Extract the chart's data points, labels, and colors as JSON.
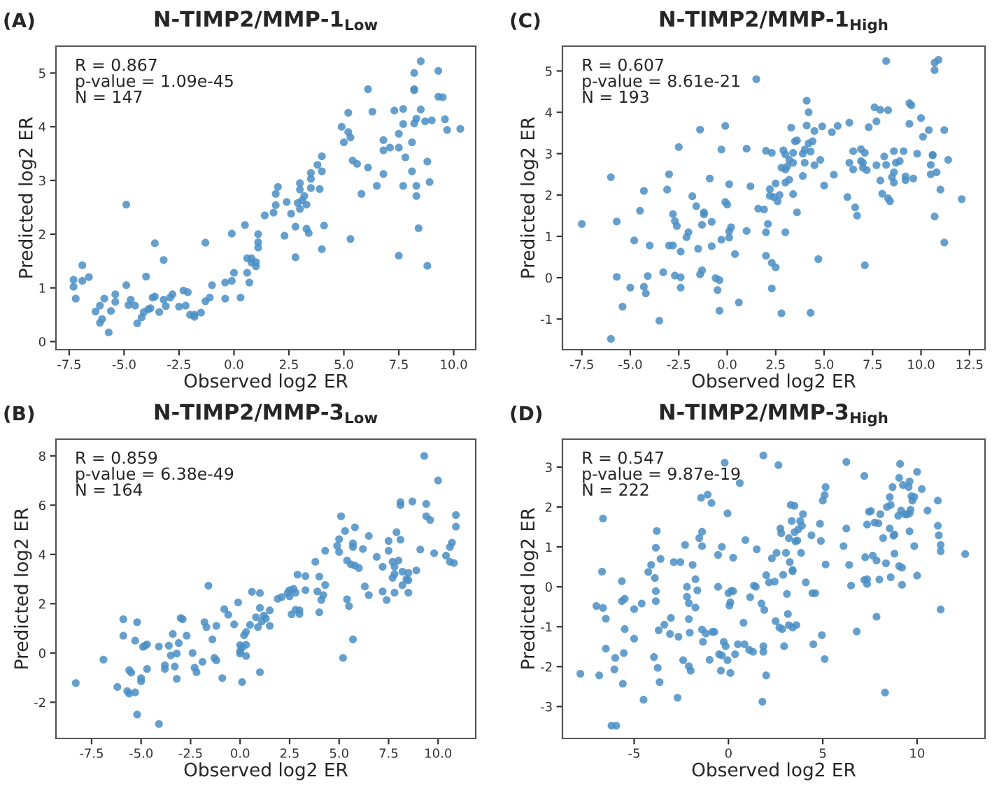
{
  "chart_data": [
    {
      "type": "scatter",
      "title": "N-TIMP2/MMP-1$_{Low}$",
      "xlabel": "Observed log2 ER",
      "ylabel": "Predicted log2 ER",
      "annotations": [
        "(A)",
        "R = 0.867\np-value = 1.09e-45\nN = 147"
      ],
      "xlim": [
        -8.1,
        11.0
      ],
      "ylim": [
        -0.15,
        5.5
      ],
      "xticks": [
        -7.5,
        {
          "value": -5,
          "label": "-5.0"
        },
        -2.5,
        {
          "value": 0,
          "label": "0.0"
        },
        2.5,
        {
          "value": 5,
          "label": "5.0"
        },
        7.5,
        {
          "value": 10,
          "label": "10.0"
        }
      ],
      "yticks": [
        0,
        1,
        2,
        3,
        4,
        5
      ],
      "grid": false,
      "marker": "circle",
      "series": [
        {
          "color": "#4a8ec4",
          "x": [
            -7.3,
            -7.3,
            -7.2,
            -6.9,
            -6.9,
            -6.6,
            -6.3,
            -6.1,
            -6.1,
            -6.0,
            -5.9,
            -5.7,
            -5.6,
            -5.4,
            -5.4,
            -4.9,
            -4.9,
            -4.8,
            -4.7,
            -4.5,
            -4.4,
            -4.2,
            -4.1,
            -4.0,
            -3.9,
            -3.8,
            -3.7,
            -3.6,
            -3.6,
            -3.4,
            -3.2,
            -3.2,
            -3.1,
            -2.9,
            -2.8,
            -2.5,
            -2.3,
            -2.2,
            -2.1,
            -2.0,
            -1.8,
            -1.8,
            -1.5,
            -1.3,
            -1.3,
            -1.1,
            -1.0,
            -0.4,
            -0.4,
            -0.1,
            -0.1,
            0.0,
            0.3,
            0.5,
            0.6,
            0.6,
            0.7,
            0.8,
            0.8,
            1.0,
            1.0,
            1.1,
            1.1,
            1.1,
            1.4,
            1.8,
            1.9,
            2.0,
            1.9,
            2.3,
            2.4,
            2.6,
            2.8,
            2.8,
            2.9,
            3.0,
            3.0,
            3.0,
            3.1,
            3.2,
            3.3,
            3.4,
            3.3,
            3.5,
            3.5,
            3.5,
            3.8,
            3.9,
            4.0,
            4.0,
            4.0,
            4.1,
            4.9,
            5.0,
            5.2,
            5.2,
            5.3,
            5.3,
            5.4,
            5.6,
            5.8,
            6.1,
            6.1,
            6.3,
            6.5,
            6.8,
            6.8,
            6.8,
            7.1,
            7.3,
            7.5,
            7.5,
            7.5,
            7.7,
            7.7,
            7.7,
            7.8,
            8.1,
            8.1,
            8.2,
            8.2,
            8.2,
            8.2,
            8.3,
            8.3,
            8.3,
            8.4,
            8.5,
            8.5,
            8.7,
            8.8,
            8.8,
            8.9,
            9.0,
            9.3,
            9.3,
            9.5,
            9.6,
            9.7,
            10.3
          ],
          "values": [
            1.15,
            1.02,
            0.8,
            1.42,
            1.13,
            1.2,
            0.56,
            0.67,
            0.35,
            0.42,
            0.8,
            0.17,
            0.57,
            0.88,
            0.74,
            1.05,
            2.55,
            0.68,
            0.78,
            0.67,
            0.34,
            0.45,
            0.55,
            1.21,
            0.6,
            0.62,
            0.82,
            1.83,
            0.84,
            0.55,
            1.52,
            0.78,
            0.66,
            0.82,
            0.88,
            0.65,
            0.95,
            0.67,
            0.92,
            0.5,
            0.46,
            0.5,
            0.54,
            0.75,
            1.84,
            0.82,
            1.05,
            1.1,
            0.8,
            2.01,
            1.13,
            1.28,
            0.82,
            2.17,
            1.28,
            1.55,
            1.1,
            1.55,
            1.47,
            1.48,
            1.4,
            2.0,
            1.85,
            1.75,
            2.35,
            2.4,
            2.75,
            2.88,
            2.54,
            1.97,
            2.6,
            2.38,
            2.14,
            1.57,
            2.58,
            2.95,
            2.83,
            2.47,
            2.63,
            2.71,
            2.1,
            2.02,
            2.55,
            3.14,
            3.03,
            2.86,
            3.29,
            2.84,
            3.45,
            3.17,
            1.72,
            2.16,
            4.0,
            3.71,
            4.26,
            3.9,
            3.8,
            1.91,
            3.37,
            3.31,
            2.75,
            4.7,
            3.24,
            4.28,
            2.9,
            3.12,
            3.75,
            3.56,
            3.61,
            4.3,
            3.61,
            3.87,
            1.6,
            4.05,
            4.33,
            2.9,
            3.43,
            3.71,
            3.17,
            5.0,
            4.7,
            4.68,
            4.06,
            4.15,
            2.9,
            2.71,
            2.11,
            5.22,
            4.32,
            4.1,
            1.41,
            3.35,
            2.97,
            4.12,
            5.04,
            4.56,
            4.55,
            4.14,
            3.94,
            3.96
          ]
        }
      ]
    },
    {
      "type": "scatter",
      "title": "N-TIMP2/MMP-1$_{High}$",
      "xlabel": "Observed log2 ER",
      "ylabel": "Predicted log2 ER",
      "annotations": [
        "(C)",
        "R = 0.607\np-value = 8.61e-21\nN = 193"
      ],
      "xlim": [
        -8.5,
        13.3
      ],
      "ylim": [
        -1.74,
        5.6
      ],
      "xticks": [
        -7.5,
        {
          "value": -5,
          "label": "-5.0"
        },
        -2.5,
        {
          "value": 0,
          "label": "0.0"
        },
        2.5,
        {
          "value": 5,
          "label": "5.0"
        },
        7.5,
        {
          "value": 10,
          "label": "10.0"
        },
        12.5
      ],
      "yticks": [
        -1,
        0,
        1,
        2,
        3,
        4,
        5
      ],
      "grid": false,
      "marker": "circle",
      "series": [
        {
          "color": "#4a8ec4",
          "x": [
            -7.5,
            -6.0,
            -6.0,
            -5.7,
            -5.7,
            -5.4,
            -5.0,
            -4.8,
            -4.5,
            -4.3,
            -4.3,
            -4.2,
            -4.1,
            -4.0,
            -3.5,
            -3.3,
            -3.1,
            -3.0,
            -3.0,
            -2.8,
            -2.8,
            -2.7,
            -2.6,
            -2.7,
            -2.5,
            -2.4,
            -2.4,
            -2.4,
            -2.1,
            -2.0,
            -1.8,
            -1.6,
            -1.5,
            -1.4,
            -1.4,
            -1.3,
            -1.3,
            -1.2,
            -1.2,
            -0.9,
            -0.8,
            -0.8,
            -0.6,
            -0.5,
            -0.4,
            -0.4,
            -0.3,
            -0.3,
            -0.1,
            -0.1,
            0.0,
            0.1,
            0.1,
            0.1,
            0.2,
            0.4,
            0.6,
            1.0,
            1.0,
            1.2,
            1.5,
            1.6,
            1.9,
            2.0,
            2.0,
            2.0,
            2.1,
            2.2,
            2.2,
            2.3,
            2.3,
            2.3,
            2.4,
            2.5,
            2.5,
            2.6,
            2.7,
            2.8,
            2.9,
            2.8,
            3.0,
            3.0,
            3.0,
            3.0,
            3.1,
            3.2,
            3.2,
            3.3,
            3.4,
            3.4,
            3.5,
            3.6,
            3.4,
            3.6,
            3.9,
            3.9,
            4.0,
            4.0,
            4.1,
            4.1,
            4.2,
            4.2,
            4.3,
            4.3,
            4.4,
            4.5,
            4.5,
            4.7,
            4.8,
            4.9,
            5.0,
            5.4,
            5.5,
            5.7,
            6.2,
            6.3,
            6.3,
            6.5,
            6.5,
            6.6,
            6.7,
            6.9,
            6.9,
            7.0,
            7.0,
            7.1,
            7.1,
            7.2,
            7.3,
            7.6,
            7.7,
            7.7,
            7.9,
            7.9,
            8.0,
            8.1,
            8.2,
            8.3,
            8.2,
            8.3,
            8.4,
            8.5,
            8.6,
            8.6,
            8.6,
            8.7,
            8.9,
            9.1,
            9.2,
            9.2,
            9.4,
            9.4,
            9.5,
            9.6,
            9.8,
            10.0,
            10.1,
            10.4,
            10.5,
            10.5,
            10.6,
            10.6,
            10.7,
            10.7,
            10.7,
            10.8,
            10.9,
            11.0,
            11.2,
            11.2,
            11.4,
            12.1
          ],
          "values": [
            1.3,
            2.43,
            -1.48,
            1.36,
            0.02,
            -0.7,
            -0.24,
            0.9,
            1.62,
            2.1,
            -0.22,
            -0.38,
            0.04,
            0.78,
            -1.04,
            0.13,
            2.13,
            2.5,
            0.78,
            0.78,
            1.54,
            1.37,
            1.25,
            0.05,
            3.16,
            0.63,
            0.01,
            -0.24,
            0.98,
            1.1,
            1.97,
            1.73,
            0.7,
            3.58,
            0.08,
            0.18,
            1.28,
            1.58,
            1.53,
            2.4,
            0.76,
            1.35,
            -0.01,
            -0.3,
            -0.06,
            -0.8,
            3.1,
            0.92,
            3.67,
            1.83,
            1.77,
            2.26,
            1.12,
            0.97,
            1.22,
            0.57,
            -0.6,
            3.12,
            1.13,
            2.21,
            4.8,
            1.67,
            1.65,
            3.07,
            1.1,
            0.53,
            1.3,
            2.14,
            1.98,
            3.02,
            0.36,
            -0.26,
            1.95,
            2.28,
            0.25,
            1.85,
            2.0,
            2.66,
            3.08,
            -0.86,
            2.62,
            2.98,
            2.3,
            1.1,
            2.69,
            2.85,
            2.37,
            3.63,
            3.02,
            2.78,
            3.3,
            3.32,
            2.02,
            1.58,
            2.46,
            3.0,
            3.1,
            2.78,
            3.68,
            4.28,
            3.25,
            4.0,
            3.05,
            -0.85,
            3.3,
            3.55,
            2.72,
            0.45,
            2.85,
            3.66,
            2.23,
            3.52,
            2.49,
            3.67,
            1.95,
            2.78,
            3.75,
            3.06,
            2.62,
            1.7,
            1.5,
            2.82,
            3.11,
            2.78,
            2.66,
            3.02,
            0.3,
            2.6,
            3.64,
            4.12,
            3.78,
            2.72,
            2.35,
            4.06,
            2.03,
            2.93,
            2.73,
            4.05,
            5.24,
            1.92,
            1.85,
            2.43,
            3.06,
            2.55,
            2.3,
            2.78,
            2.82,
            3.06,
            2.45,
            2.36,
            4.22,
            3.72,
            4.17,
            2.4,
            3.0,
            3.86,
            3.41,
            3.57,
            2.5,
            2.73,
            2.96,
            2.97,
            5.02,
            1.48,
            5.2,
            2.55,
            5.27,
            2.13,
            3.57,
            0.85,
            2.85,
            1.9
          ]
        }
      ]
    },
    {
      "type": "scatter",
      "title": "N-TIMP2/MMP-3$_{Low}$",
      "xlabel": "Observed log2 ER",
      "ylabel": "Predicted log2 ER",
      "annotations": [
        "(B)",
        "R = 0.859\np-value = 6.38e-49\nN = 164"
      ],
      "xlim": [
        -9.3,
        11.9
      ],
      "ylim": [
        -3.47,
        8.68
      ],
      "xticks": [
        -7.5,
        {
          "value": -5,
          "label": "-5.0"
        },
        -2.5,
        {
          "value": 0,
          "label": "0.0"
        },
        2.5,
        {
          "value": 5,
          "label": "5.0"
        },
        7.5,
        {
          "value": 10,
          "label": "10.0"
        }
      ],
      "yticks": [
        -2,
        0,
        2,
        4,
        6,
        8
      ],
      "grid": false,
      "marker": "circle",
      "series": [
        {
          "color": "#4a8ec4",
          "x": [
            -8.3,
            -6.9,
            -6.2,
            -5.9,
            -5.9,
            -5.7,
            -5.6,
            -5.6,
            -5.5,
            -5.3,
            -5.3,
            -5.2,
            -5.2,
            -5.0,
            -5.0,
            -4.9,
            -4.8,
            -4.7,
            -4.7,
            -4.1,
            -4.1,
            -3.8,
            -3.8,
            -3.6,
            -3.5,
            -3.4,
            -3.3,
            -3.2,
            -3.2,
            -3.1,
            -3.0,
            -2.9,
            -2.7,
            -2.4,
            -2.3,
            -2.2,
            -1.9,
            -1.8,
            -1.7,
            -1.6,
            -1.4,
            -1.3,
            -1.2,
            -1.2,
            -0.9,
            -0.8,
            -0.6,
            -0.3,
            -0.1,
            0.0,
            0.0,
            0.0,
            0.1,
            0.1,
            0.2,
            0.3,
            0.3,
            0.3,
            0.5,
            0.6,
            0.8,
            0.9,
            1.0,
            1.0,
            1.0,
            1.1,
            1.2,
            1.3,
            1.5,
            1.5,
            1.9,
            2.1,
            2.4,
            2.5,
            2.5,
            2.6,
            2.7,
            2.8,
            2.8,
            2.9,
            3.0,
            3.0,
            3.3,
            3.3,
            3.8,
            3.9,
            4.0,
            4.0,
            4.1,
            4.2,
            4.3,
            4.3,
            4.9,
            5.0,
            5.0,
            5.1,
            5.2,
            5.3,
            5.4,
            5.4,
            5.5,
            5.6,
            5.7,
            5.7,
            5.7,
            5.8,
            5.8,
            6.0,
            6.2,
            6.3,
            6.5,
            6.5,
            6.9,
            7.2,
            7.2,
            7.4,
            7.5,
            7.5,
            7.7,
            7.7,
            7.8,
            7.8,
            7.8,
            7.9,
            8.0,
            8.1,
            8.1,
            8.1,
            8.2,
            8.2,
            8.4,
            8.5,
            8.5,
            8.5,
            8.7,
            8.9,
            9.1,
            9.3,
            9.4,
            9.4,
            9.6,
            9.8,
            10.0,
            10.4,
            10.6,
            10.6,
            10.7,
            10.8,
            10.9,
            10.9
          ],
          "values": [
            -1.22,
            -0.27,
            -1.38,
            0.7,
            1.37,
            -1.55,
            -1.65,
            -0.7,
            -0.8,
            -1.6,
            0.5,
            1.25,
            -2.5,
            -1.02,
            -1.15,
            0.25,
            0.3,
            0.35,
            -0.65,
            0.26,
            -2.88,
            -0.5,
            -0.65,
            0.3,
            -0.1,
            0.77,
            -0.55,
            -1.05,
            -0.02,
            0.4,
            1.42,
            1.37,
            0.7,
            0.0,
            -0.6,
            -0.78,
            -0.36,
            1.25,
            1.05,
            2.73,
            0.55,
            -0.2,
            1.1,
            -0.3,
            -1.02,
            1.78,
            1.55,
            1.16,
            2.05,
            0.32,
            0.07,
            -0.02,
            0.22,
            -1.18,
            0.72,
            -0.12,
            0.85,
            0.33,
            1.14,
            2.48,
            1.45,
            1.05,
            1.83,
            2.43,
            -0.78,
            1.28,
            1.52,
            1.4,
            1.1,
            1.73,
            2.2,
            2.27,
            2.44,
            2.55,
            2.3,
            1.57,
            2.6,
            2.45,
            1.75,
            3.18,
            1.58,
            1.73,
            2.55,
            3.12,
            3.7,
            2.5,
            3.1,
            1.65,
            2.15,
            2.35,
            2.76,
            4.15,
            4.35,
            4.1,
            4.62,
            5.55,
            -0.2,
            4.95,
            3.75,
            2.18,
            1.9,
            3.6,
            4.45,
            4.3,
            0.55,
            5.1,
            3.55,
            3.45,
            4.22,
            2.7,
            2.35,
            4.75,
            3.9,
            2.5,
            3.5,
            2.15,
            4.55,
            4.15,
            3.7,
            3.05,
            3.2,
            2.45,
            3.5,
            4.9,
            3.75,
            6.0,
            6.12,
            4.6,
            3.3,
            2.75,
            3.0,
            2.95,
            2.45,
            3.25,
            6.15,
            3.35,
            4.2,
            8.0,
            5.55,
            6.05,
            5.4,
            4.05,
            7.0,
            3.95,
            3.7,
            4.3,
            4.48,
            3.65,
            5.6,
            5.13
          ]
        }
      ]
    },
    {
      "type": "scatter",
      "title": "N-TIMP2/MMP-3$_{High}$",
      "xlabel": "Observed log2 ER",
      "ylabel": "Predicted log2 ER",
      "annotations": [
        "(D)",
        "R = 0.547\np-value = 9.87e-19\nN = 222"
      ],
      "xlim": [
        -8.8,
        13.6
      ],
      "ylim": [
        -3.8,
        3.7
      ],
      "xticks": [
        -5,
        0,
        5,
        10
      ],
      "yticks": [
        -3,
        -2,
        -1,
        0,
        1,
        2,
        3
      ],
      "grid": false,
      "marker": "circle",
      "series": [
        {
          "color": "#4a8ec4",
          "x": [
            -7.85,
            -7.0,
            -6.85,
            -6.65,
            -6.7,
            -6.65,
            -6.5,
            -6.5,
            -6.2,
            -5.95,
            -6.05,
            -6.0,
            -5.65,
            -5.65,
            -5.6,
            -5.55,
            -5.5,
            -5.5,
            -5.0,
            -5.0,
            -4.6,
            -4.5,
            -4.25,
            -4.1,
            -3.9,
            -3.95,
            -3.8,
            -3.85,
            -3.85,
            -3.85,
            -3.75,
            -3.7,
            -3.65,
            -3.6,
            -3.4,
            -3.05,
            -3.1,
            -2.9,
            -2.7,
            -2.65,
            -2.55,
            -2.3,
            -2.4,
            -2.2,
            -2.2,
            -2.1,
            -2.1,
            -2.1,
            -2.05,
            -2.0,
            -1.9,
            -1.75,
            -1.75,
            -1.65,
            -1.55,
            -1.45,
            -1.4,
            -1.4,
            -1.4,
            -1.35,
            -1.2,
            -1.1,
            -1.0,
            -0.9,
            -0.85,
            -0.75,
            -0.55,
            -0.55,
            -0.5,
            -0.35,
            -0.35,
            -0.4,
            -0.25,
            -0.2,
            -0.15,
            -0.05,
            -0.05,
            0.0,
            0.05,
            0.1,
            0.1,
            0.15,
            0.25,
            0.25,
            0.35,
            0.5,
            0.6,
            0.8,
            0.85,
            0.9,
            1.1,
            1.15,
            1.3,
            1.35,
            1.5,
            1.45,
            1.75,
            1.85,
            1.8,
            1.85,
            1.85,
            1.9,
            2.0,
            2.0,
            2.15,
            2.3,
            2.45,
            2.5,
            2.55,
            2.65,
            2.7,
            2.75,
            2.8,
            2.85,
            2.9,
            2.95,
            3.05,
            3.1,
            3.15,
            3.2,
            3.2,
            3.25,
            3.3,
            3.35,
            3.4,
            3.4,
            3.4,
            3.5,
            3.5,
            3.55,
            3.6,
            3.65,
            3.7,
            3.8,
            3.85,
            3.9,
            3.95,
            4.1,
            4.4,
            4.45,
            4.5,
            4.6,
            4.85,
            4.9,
            4.95,
            5.0,
            5.1,
            5.15,
            5.15,
            5.1,
            6.1,
            6.25,
            6.25,
            6.4,
            6.5,
            6.8,
            7.2,
            7.25,
            7.2,
            7.35,
            7.35,
            7.35,
            7.45,
            7.55,
            7.65,
            7.75,
            7.85,
            7.85,
            7.95,
            8.0,
            8.05,
            8.2,
            8.3,
            8.35,
            8.4,
            8.55,
            8.55,
            8.6,
            8.6,
            8.7,
            8.75,
            8.8,
            8.8,
            9.0,
            9.05,
            9.05,
            9.15,
            9.1,
            9.2,
            9.2,
            9.25,
            9.35,
            9.45,
            9.55,
            9.6,
            9.6,
            9.6,
            9.65,
            9.7,
            9.75,
            9.85,
            9.85,
            10.0,
            10.0,
            10.25,
            10.55,
            11.1,
            11.1,
            11.15,
            11.25,
            11.25,
            11.25,
            12.55
          ],
          "values": [
            -2.18,
            -0.48,
            -2.22,
            1.71,
            0.38,
            -0.53,
            -0.8,
            -1.55,
            -3.48,
            -3.48,
            -2.07,
            -1.78,
            0.14,
            -0.36,
            -2.43,
            -1.66,
            -1.06,
            -0.3,
            -0.56,
            -1.3,
            -0.42,
            -2.83,
            0.37,
            0.55,
            0.22,
            -1.76,
            1.4,
            0.98,
            -0.11,
            -0.36,
            -2.03,
            -1.09,
            -2.39,
            0.7,
            -0.95,
            -0.78,
            -1.18,
            0.62,
            -2.78,
            -1.25,
            0.62,
            1.05,
            -1.84,
            0.0,
            -0.25,
            -0.41,
            -0.81,
            -1.99,
            -1.15,
            -2.1,
            0.55,
            0.19,
            -0.52,
            -0.09,
            1.22,
            2.23,
            1.38,
            1.02,
            -1.07,
            -1.38,
            -1.17,
            2.31,
            -1.83,
            2.1,
            -1.13,
            -1.13,
            0.8,
            0.0,
            -1.69,
            -1.72,
            1.0,
            -2.1,
            -1.38,
            3.11,
            -1.49,
            -1.84,
            1.84,
            -0.16,
            -0.47,
            -2.16,
            -0.39,
            -0.1,
            0.73,
            -0.11,
            -1.69,
            -1.44,
            2.6,
            -0.9,
            -1.44,
            1.17,
            -1.58,
            -0.26,
            -1.63,
            0.03,
            0.94,
            0.0,
            -0.42,
            3.29,
            -2.88,
            -1.63,
            -1.49,
            -0.58,
            -2.22,
            0.29,
            0.11,
            0.71,
            0.13,
            -0.86,
            0.85,
            3.05,
            -1.02,
            1.46,
            1.34,
            -1.06,
            0.3,
            -1.49,
            0.85,
            -0.18,
            -0.68,
            -0.96,
            1.22,
            0.62,
            2.05,
            1.65,
            0.42,
            0.39,
            -1.02,
            2.03,
            1.37,
            1.14,
            -0.96,
            1.16,
            1.44,
            1.65,
            0.85,
            1.53,
            1.82,
            0.11,
            1.29,
            -0.16,
            -1.44,
            -0.16,
            1.58,
            1.15,
            -1.21,
            2.16,
            2.3,
            2.5,
            0.56,
            -1.81,
            1.02,
            3.13,
            1.46,
            0.55,
            0.03,
            -1.12,
            2.78,
            0.74,
            0.17,
            0.07,
            0.19,
            1.56,
            1.88,
            1.9,
            0.78,
            1.61,
            -0.75,
            0.66,
            1.59,
            0.18,
            1.82,
            1.22,
            -2.65,
            0.59,
            2.0,
            2.25,
            1.46,
            2.05,
            0.24,
            2.5,
            1.28,
            1.31,
            0.83,
            1.78,
            2.73,
            0.52,
            1.91,
            3.08,
            0.05,
            0.48,
            2.55,
            1.82,
            1.81,
            2.5,
            2.64,
            1.39,
            1.84,
            1.93,
            2.27,
            2.16,
            2.25,
            1.02,
            0.28,
            2.88,
            2.45,
            1.91,
            2.16,
            1.53,
            1.29,
            1.05,
            0.89,
            -0.57,
            0.82
          ]
        }
      ]
    }
  ]
}
